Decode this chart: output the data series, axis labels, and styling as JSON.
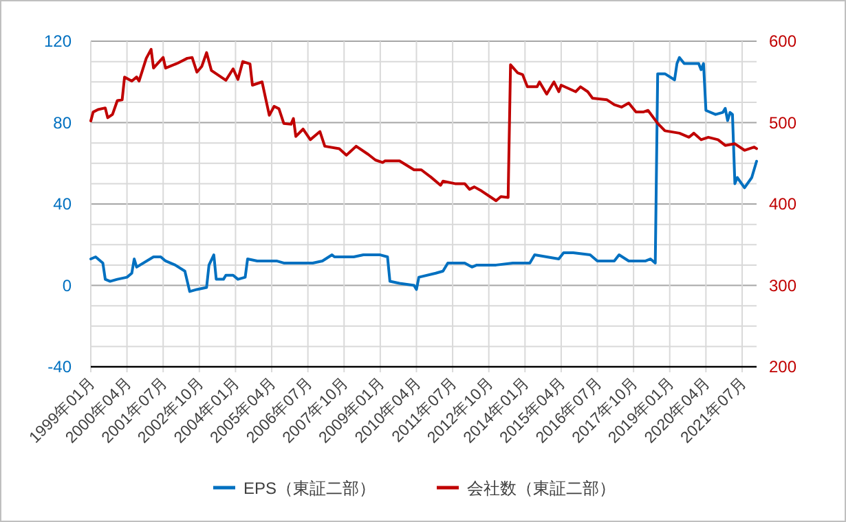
{
  "chart_data": {
    "type": "line",
    "legend": "bottom",
    "grid": true,
    "line_style": "solid",
    "xlim": [
      "1999-01",
      "2022-01"
    ],
    "xticks": [
      {
        "value": "1999-01",
        "label": "1999年01月"
      },
      {
        "value": "2000-04",
        "label": "2000年04月"
      },
      {
        "value": "2001-07",
        "label": "2001年07月"
      },
      {
        "value": "2002-10",
        "label": "2002年10月"
      },
      {
        "value": "2004-01",
        "label": "2004年01月"
      },
      {
        "value": "2005-04",
        "label": "2005年04月"
      },
      {
        "value": "2006-07",
        "label": "2006年07月"
      },
      {
        "value": "2007-10",
        "label": "2007年10月"
      },
      {
        "value": "2009-01",
        "label": "2009年01月"
      },
      {
        "value": "2010-04",
        "label": "2010年04月"
      },
      {
        "value": "2011-07",
        "label": "2011年07月"
      },
      {
        "value": "2012-10",
        "label": "2012年10月"
      },
      {
        "value": "2014-01",
        "label": "2014年01月"
      },
      {
        "value": "2015-04",
        "label": "2015年04月"
      },
      {
        "value": "2016-07",
        "label": "2016年07月"
      },
      {
        "value": "2017-10",
        "label": "2017年10月"
      },
      {
        "value": "2019-01",
        "label": "2019年01月"
      },
      {
        "value": "2020-04",
        "label": "2020年04月"
      },
      {
        "value": "2021-07",
        "label": "2021年07月"
      }
    ],
    "ylim": [
      -40,
      120
    ],
    "yticks": [
      -40,
      {
        "value": -30,
        "label": null
      },
      {
        "value": -20,
        "label": null
      },
      {
        "value": -10,
        "label": null
      },
      0,
      {
        "value": 10,
        "label": null
      },
      {
        "value": 20,
        "label": null
      },
      {
        "value": 30,
        "label": null
      },
      40,
      {
        "value": 50,
        "label": null
      },
      {
        "value": 60,
        "label": null
      },
      {
        "value": 70,
        "label": null
      },
      80,
      {
        "value": 90,
        "label": null
      },
      {
        "value": 100,
        "label": null
      },
      {
        "value": 110,
        "label": null
      },
      120
    ],
    "y2lim": [
      200,
      600
    ],
    "y2ticks": [
      200,
      300,
      400,
      500,
      600
    ],
    "series": [
      {
        "name": "EPS（東証二部）",
        "color": "#0070c0",
        "x": [
          "1999-01",
          "1999-03",
          "1999-06",
          "1999-07",
          "1999-09",
          "1999-12",
          "2000-04",
          "2000-06",
          "2000-07",
          "2000-08",
          "2001-03",
          "2001-06",
          "2001-08",
          "2001-12",
          "2002-04",
          "2002-06",
          "2002-09",
          "2003-01",
          "2003-02",
          "2003-04",
          "2003-05",
          "2003-08",
          "2003-09",
          "2003-12",
          "2004-02",
          "2004-05",
          "2004-06",
          "2004-10",
          "2005-06",
          "2005-09",
          "2006-01",
          "2006-09",
          "2007-01",
          "2007-05",
          "2007-06",
          "2008-02",
          "2008-06",
          "2009-01",
          "2009-04",
          "2009-05",
          "2009-09",
          "2010-03",
          "2010-04",
          "2010-05",
          "2010-12",
          "2011-03",
          "2011-05",
          "2011-12",
          "2012-03",
          "2012-05",
          "2013-01",
          "2013-08",
          "2014-03",
          "2014-05",
          "2015-03",
          "2015-05",
          "2015-09",
          "2016-04",
          "2016-07",
          "2017-02",
          "2017-04",
          "2017-08",
          "2018-03",
          "2018-05",
          "2018-07",
          "2018-08",
          "2018-11",
          "2019-03",
          "2019-04",
          "2019-05",
          "2019-07",
          "2020-01",
          "2020-02",
          "2020-03",
          "2020-04",
          "2020-08",
          "2020-11",
          "2020-12",
          "2021-01",
          "2021-02",
          "2021-03",
          "2021-04",
          "2021-05",
          "2021-08",
          "2021-11",
          "2022-01"
        ],
        "values": [
          13,
          14,
          11,
          3,
          2,
          3,
          4,
          6,
          13,
          9,
          14,
          14,
          12,
          10,
          7,
          -3,
          -2,
          -1,
          10,
          15,
          3,
          3,
          5,
          5,
          3,
          4,
          13,
          12,
          12,
          11,
          11,
          11,
          12,
          15,
          14,
          14,
          15,
          15,
          14,
          2,
          1,
          0,
          -2,
          4,
          6,
          7,
          11,
          11,
          9,
          10,
          10,
          11,
          11,
          15,
          13,
          16,
          16,
          15,
          12,
          12,
          15,
          12,
          12,
          13,
          11,
          104,
          104,
          101,
          109,
          112,
          109,
          109,
          106,
          109,
          86,
          84,
          85,
          87,
          81,
          85,
          84,
          50,
          53,
          48,
          53,
          61
        ]
      },
      {
        "name": "会社数（東証二部）",
        "color": "#c00000",
        "axis": "y2",
        "x": [
          "1999-01",
          "1999-02",
          "1999-04",
          "1999-07",
          "1999-08",
          "1999-10",
          "1999-12",
          "2000-02",
          "2000-03",
          "2000-06",
          "2000-08",
          "2000-09",
          "2000-12",
          "2001-02",
          "2001-03",
          "2001-07",
          "2001-08",
          "2002-01",
          "2002-05",
          "2002-07",
          "2002-09",
          "2002-11",
          "2003-01",
          "2003-03",
          "2003-09",
          "2003-12",
          "2004-02",
          "2004-04",
          "2004-07",
          "2004-08",
          "2004-12",
          "2005-03",
          "2005-05",
          "2005-07",
          "2005-09",
          "2005-12",
          "2006-01",
          "2006-02",
          "2006-05",
          "2006-08",
          "2006-12",
          "2007-02",
          "2007-08",
          "2007-11",
          "2008-03",
          "2008-08",
          "2008-11",
          "2009-02",
          "2009-03",
          "2009-09",
          "2010-03",
          "2010-06",
          "2010-10",
          "2011-02",
          "2011-03",
          "2011-08",
          "2011-12",
          "2012-02",
          "2012-04",
          "2012-07",
          "2012-11",
          "2013-01",
          "2013-03",
          "2013-06",
          "2013-07",
          "2013-10",
          "2013-12",
          "2014-02",
          "2014-06",
          "2014-07",
          "2014-10",
          "2015-01",
          "2015-03",
          "2015-04",
          "2015-10",
          "2015-12",
          "2016-03",
          "2016-05",
          "2016-11",
          "2017-02",
          "2017-05",
          "2017-08",
          "2017-11",
          "2018-02",
          "2018-04",
          "2018-08",
          "2018-11",
          "2019-05",
          "2019-09",
          "2019-11",
          "2020-02",
          "2020-05",
          "2020-09",
          "2020-12",
          "2021-04",
          "2021-08",
          "2021-12",
          "2022-01"
        ],
        "values": [
          502,
          513,
          516,
          518,
          506,
          510,
          527,
          528,
          556,
          551,
          556,
          551,
          579,
          590,
          567,
          580,
          567,
          573,
          579,
          580,
          562,
          569,
          586,
          564,
          552,
          566,
          553,
          575,
          572,
          546,
          550,
          509,
          520,
          517,
          499,
          498,
          505,
          483,
          492,
          479,
          489,
          471,
          468,
          460,
          471,
          461,
          454,
          451,
          453,
          453,
          442,
          442,
          433,
          423,
          428,
          425,
          425,
          418,
          421,
          416,
          408,
          404,
          409,
          408,
          571,
          561,
          559,
          544,
          544,
          550,
          535,
          550,
          538,
          546,
          538,
          544,
          538,
          530,
          528,
          522,
          519,
          524,
          513,
          513,
          515,
          499,
          490,
          487,
          482,
          487,
          479,
          482,
          479,
          472,
          474,
          466,
          470,
          468
        ]
      }
    ]
  }
}
